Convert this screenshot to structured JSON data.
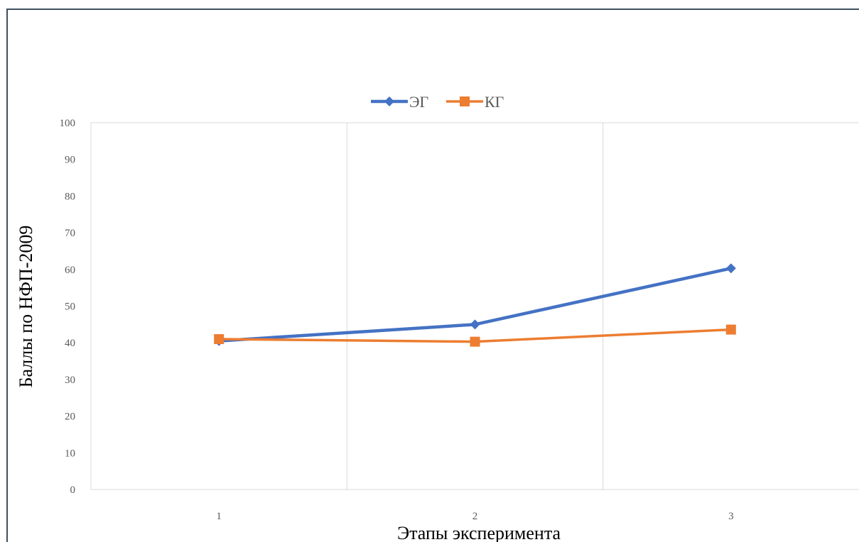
{
  "chart_data": {
    "type": "line",
    "categories": [
      "1",
      "2",
      "3"
    ],
    "series": [
      {
        "name": "ЭГ",
        "values": [
          40.5,
          45,
          60.3
        ],
        "color": "#4472C4",
        "marker": "diamond"
      },
      {
        "name": "КГ",
        "values": [
          41,
          40.3,
          43.6
        ],
        "color": "#ED7D31",
        "marker": "square"
      }
    ],
    "xlabel": "Этапы эксперимента",
    "ylabel": "Баллы по НФП-2009",
    "ylim": [
      0,
      100
    ],
    "yticks": [
      0,
      10,
      20,
      30,
      40,
      50,
      60,
      70,
      80,
      90,
      100
    ],
    "grid": "vertical",
    "legend_position": "top"
  }
}
